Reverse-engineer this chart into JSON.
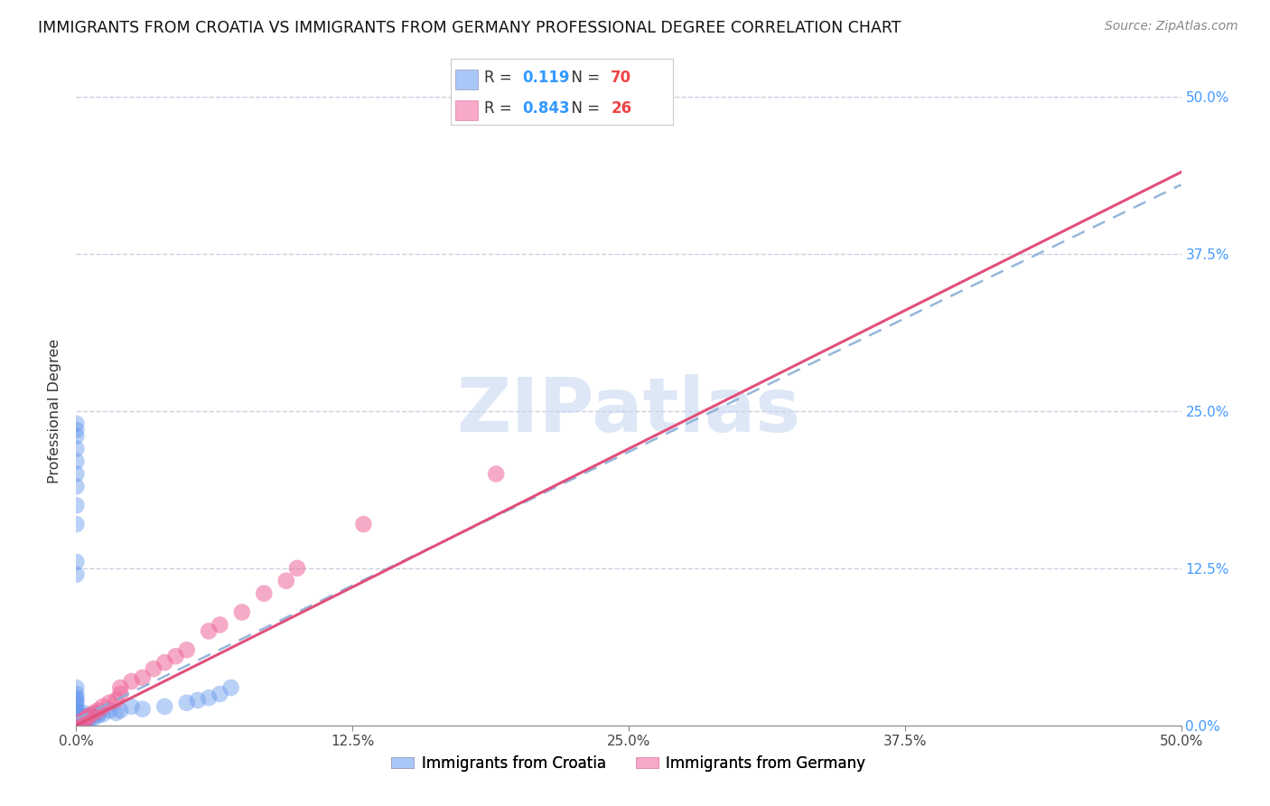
{
  "title": "IMMIGRANTS FROM CROATIA VS IMMIGRANTS FROM GERMANY PROFESSIONAL DEGREE CORRELATION CHART",
  "source": "Source: ZipAtlas.com",
  "ylabel": "Professional Degree",
  "xlim": [
    0,
    0.5
  ],
  "ylim": [
    0,
    0.5
  ],
  "xtick_vals": [
    0.0,
    0.125,
    0.25,
    0.375,
    0.5
  ],
  "xtick_labels": [
    "0.0%",
    "12.5%",
    "25.0%",
    "37.5%",
    "50.0%"
  ],
  "ytick_vals": [
    0.0,
    0.125,
    0.25,
    0.375,
    0.5
  ],
  "ytick_labels_right": [
    "0.0%",
    "12.5%",
    "25.0%",
    "37.5%",
    "50.0%"
  ],
  "legend_entries": [
    {
      "label": "Immigrants from Croatia",
      "R": "0.119",
      "N": "70",
      "patch_color": "#a8c8f8",
      "scatter_color": "#6699ee"
    },
    {
      "label": "Immigrants from Germany",
      "R": "0.843",
      "N": "26",
      "patch_color": "#f8a8c8",
      "scatter_color": "#ee6699"
    }
  ],
  "trendline_croatia_color": "#8ab0d8",
  "trendline_germany_color": "#e0507a",
  "watermark": "ZIPatlas",
  "watermark_color": "#c8d8f0",
  "background_color": "#ffffff",
  "grid_color": "#c8d0e0",
  "title_fontsize": 12.5,
  "right_tick_color": "#4499ff",
  "croatia_x": [
    0.0,
    0.0,
    0.0,
    0.0,
    0.0,
    0.0,
    0.0,
    0.0,
    0.0,
    0.0,
    0.0,
    0.0,
    0.0,
    0.0,
    0.0,
    0.0,
    0.0,
    0.0,
    0.0,
    0.0,
    0.0,
    0.0,
    0.0,
    0.0,
    0.0,
    0.0,
    0.0,
    0.0,
    0.0,
    0.0,
    0.0,
    0.0,
    0.0,
    0.0,
    0.0,
    0.0,
    0.0,
    0.0,
    0.0,
    0.0,
    0.0,
    0.0,
    0.0,
    0.0,
    0.0,
    0.0,
    0.002,
    0.002,
    0.003,
    0.003,
    0.004,
    0.005,
    0.005,
    0.006,
    0.007,
    0.008,
    0.01,
    0.01,
    0.012,
    0.015,
    0.018,
    0.02,
    0.025,
    0.03,
    0.04,
    0.05,
    0.055,
    0.06,
    0.065,
    0.07
  ],
  "croatia_y": [
    0.0,
    0.0,
    0.0,
    0.0,
    0.0,
    0.0,
    0.0,
    0.0,
    0.0,
    0.0,
    0.0,
    0.0,
    0.0,
    0.0,
    0.0,
    0.0,
    0.0,
    0.0,
    0.0,
    0.002,
    0.003,
    0.004,
    0.005,
    0.005,
    0.006,
    0.008,
    0.01,
    0.01,
    0.012,
    0.015,
    0.018,
    0.02,
    0.022,
    0.025,
    0.03,
    0.22,
    0.23,
    0.235,
    0.24,
    0.19,
    0.2,
    0.21,
    0.175,
    0.16,
    0.13,
    0.12,
    0.005,
    0.008,
    0.003,
    0.01,
    0.005,
    0.003,
    0.007,
    0.005,
    0.008,
    0.006,
    0.008,
    0.01,
    0.009,
    0.012,
    0.01,
    0.012,
    0.015,
    0.013,
    0.015,
    0.018,
    0.02,
    0.022,
    0.025,
    0.03
  ],
  "germany_x": [
    0.0,
    0.002,
    0.004,
    0.005,
    0.006,
    0.008,
    0.01,
    0.012,
    0.015,
    0.018,
    0.02,
    0.02,
    0.025,
    0.03,
    0.035,
    0.04,
    0.045,
    0.05,
    0.06,
    0.065,
    0.075,
    0.085,
    0.095,
    0.1,
    0.13,
    0.19
  ],
  "germany_y": [
    0.0,
    0.003,
    0.005,
    0.006,
    0.008,
    0.01,
    0.012,
    0.015,
    0.018,
    0.02,
    0.025,
    0.03,
    0.035,
    0.038,
    0.045,
    0.05,
    0.055,
    0.06,
    0.075,
    0.08,
    0.09,
    0.105,
    0.115,
    0.125,
    0.16,
    0.2
  ]
}
